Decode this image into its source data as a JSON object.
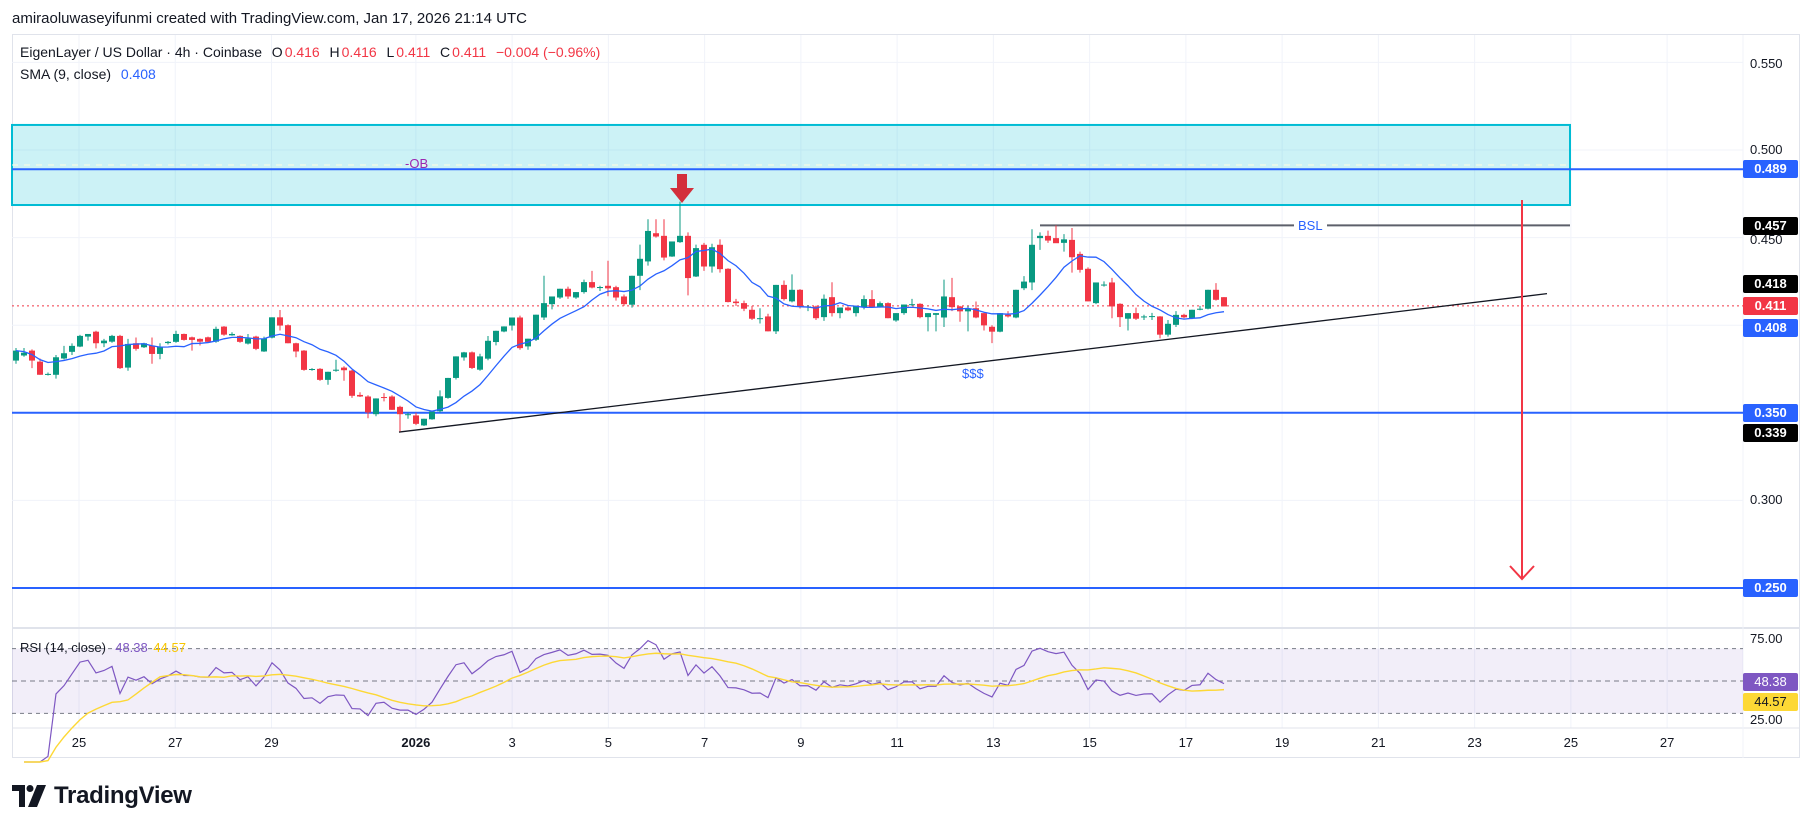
{
  "attribution": "amiraoluwaseyifunmi created with TradingView.com, Jan 17, 2026 21:14 UTC",
  "legend": {
    "symbol": "EigenLayer / US Dollar · 4h · Coinbase",
    "open_label": "O",
    "open": "0.416",
    "high_label": "H",
    "high": "0.416",
    "low_label": "L",
    "low": "0.411",
    "close_label": "C",
    "close": "0.411",
    "change": "−0.004 (−0.96%)",
    "sma_label": "SMA (9, close)",
    "sma_value": "0.408"
  },
  "rsi_legend": {
    "label": "RSI (14, close)",
    "rsi_value": "48.38",
    "ma_value": "44.57"
  },
  "price_axis": {
    "ticks": [
      "0.550",
      "0.500",
      "0.450",
      "0.300"
    ],
    "tags": [
      {
        "value": "0.489",
        "color": "#2962ff"
      },
      {
        "value": "0.457",
        "color": "#000000"
      },
      {
        "value": "0.418",
        "color": "#000000"
      },
      {
        "value": "0.411",
        "color": "#f23645"
      },
      {
        "value": "0.408",
        "color": "#2962ff"
      },
      {
        "value": "0.350",
        "color": "#2962ff"
      },
      {
        "value": "0.339",
        "color": "#000000"
      },
      {
        "value": "0.250",
        "color": "#2962ff"
      }
    ]
  },
  "rsi_axis": {
    "ticks": [
      "75.00",
      "25.00"
    ],
    "tags": [
      {
        "value": "48.38",
        "color": "#7e57c2"
      },
      {
        "value": "44.57",
        "color": "#fdd835"
      }
    ]
  },
  "annotations": {
    "ob_label": "-OB",
    "bsl_label": "BSL",
    "liquidity_label": "$$$"
  },
  "branding": {
    "logo_text": "TradingView"
  },
  "colors": {
    "up": "#089981",
    "down": "#f23645",
    "sma": "#2962ff",
    "rsi": "#7e57c2",
    "rsi_ma": "#fdd835",
    "zone": "#00bcd4",
    "level": "#2962ff",
    "arrow": "#f23645"
  },
  "chart_data": {
    "type": "candlestick",
    "interval": "4h",
    "x_ticks": [
      {
        "label": "25",
        "day": 0
      },
      {
        "label": "27",
        "day": 2
      },
      {
        "label": "29",
        "day": 4
      },
      {
        "label": "2026",
        "day": 7,
        "bold": true
      },
      {
        "label": "3",
        "day": 9
      },
      {
        "label": "5",
        "day": 11
      },
      {
        "label": "7",
        "day": 13
      },
      {
        "label": "9",
        "day": 15
      },
      {
        "label": "11",
        "day": 17
      },
      {
        "label": "13",
        "day": 19
      },
      {
        "label": "15",
        "day": 21
      },
      {
        "label": "17",
        "day": 23
      },
      {
        "label": "19",
        "day": 25
      },
      {
        "label": "21",
        "day": 27
      },
      {
        "label": "23",
        "day": 29
      },
      {
        "label": "25",
        "day": 31
      },
      {
        "label": "27",
        "day": 33
      }
    ],
    "ylim": [
      0.22,
      0.57
    ],
    "ohlc": [
      [
        0.3798,
        0.387,
        0.378,
        0.3855
      ],
      [
        0.3827,
        0.387,
        0.382,
        0.3843
      ],
      [
        0.3855,
        0.3862,
        0.3755,
        0.3798
      ],
      [
        0.3792,
        0.381,
        0.3717,
        0.3717
      ],
      [
        0.372,
        0.373,
        0.3713,
        0.3722
      ],
      [
        0.3717,
        0.383,
        0.3695,
        0.3817
      ],
      [
        0.381,
        0.3882,
        0.3805,
        0.384
      ],
      [
        0.3848,
        0.3896,
        0.383,
        0.3882
      ],
      [
        0.3878,
        0.3945,
        0.3875,
        0.3939
      ],
      [
        0.3935,
        0.395,
        0.3912,
        0.395
      ],
      [
        0.3963,
        0.3968,
        0.3868,
        0.3897
      ],
      [
        0.3897,
        0.3922,
        0.3875,
        0.3912
      ],
      [
        0.3906,
        0.3945,
        0.39,
        0.3939
      ],
      [
        0.3939,
        0.3945,
        0.375,
        0.3755
      ],
      [
        0.3758,
        0.3922,
        0.374,
        0.3893
      ],
      [
        0.3897,
        0.393,
        0.3855,
        0.3865
      ],
      [
        0.3874,
        0.39,
        0.387,
        0.3897
      ],
      [
        0.3884,
        0.393,
        0.378,
        0.3836
      ],
      [
        0.3836,
        0.3897,
        0.3806,
        0.3878
      ],
      [
        0.3898,
        0.391,
        0.389,
        0.3905
      ],
      [
        0.3905,
        0.3968,
        0.39,
        0.395
      ],
      [
        0.395,
        0.3952,
        0.3912,
        0.3916
      ],
      [
        0.3931,
        0.3935,
        0.3855,
        0.3916
      ],
      [
        0.3922,
        0.3925,
        0.3884,
        0.3906
      ],
      [
        0.3931,
        0.3935,
        0.39,
        0.3905
      ],
      [
        0.3906,
        0.3992,
        0.39,
        0.3979
      ],
      [
        0.3992,
        0.3995,
        0.394,
        0.3946
      ],
      [
        0.3942,
        0.396,
        0.394,
        0.395
      ],
      [
        0.3939,
        0.3942,
        0.39,
        0.3905
      ],
      [
        0.3895,
        0.395,
        0.389,
        0.3924
      ],
      [
        0.3935,
        0.394,
        0.3858,
        0.3865
      ],
      [
        0.385,
        0.3935,
        0.3848,
        0.3924
      ],
      [
        0.3929,
        0.4045,
        0.3925,
        0.4045
      ],
      [
        0.4045,
        0.4087,
        0.397,
        0.3998
      ],
      [
        0.4,
        0.4005,
        0.3897,
        0.3897
      ],
      [
        0.3897,
        0.39,
        0.3817,
        0.385
      ],
      [
        0.3855,
        0.3858,
        0.374,
        0.3745
      ],
      [
        0.3745,
        0.3755,
        0.374,
        0.375
      ],
      [
        0.3751,
        0.3755,
        0.3682,
        0.3688
      ],
      [
        0.3688,
        0.3734,
        0.366,
        0.3734
      ],
      [
        0.374,
        0.3803,
        0.3734,
        0.3746
      ],
      [
        0.3758,
        0.3766,
        0.3683,
        0.3743
      ],
      [
        0.3741,
        0.3745,
        0.3585,
        0.3597
      ],
      [
        0.3602,
        0.3617,
        0.359,
        0.3593
      ],
      [
        0.3593,
        0.36,
        0.3469,
        0.3502
      ],
      [
        0.3492,
        0.3582,
        0.348,
        0.3582
      ],
      [
        0.359,
        0.3612,
        0.3565,
        0.3589
      ],
      [
        0.3593,
        0.36,
        0.3517,
        0.3517
      ],
      [
        0.3534,
        0.354,
        0.3394,
        0.3492
      ],
      [
        0.3488,
        0.35,
        0.3466,
        0.3492
      ],
      [
        0.3485,
        0.35,
        0.343,
        0.3437
      ],
      [
        0.3428,
        0.3466,
        0.3425,
        0.3466
      ],
      [
        0.3463,
        0.351,
        0.346,
        0.3507
      ],
      [
        0.3509,
        0.3628,
        0.35,
        0.3594
      ],
      [
        0.3585,
        0.3699,
        0.358,
        0.3699
      ],
      [
        0.3699,
        0.3822,
        0.369,
        0.3822
      ],
      [
        0.3816,
        0.3848,
        0.3798,
        0.3845
      ],
      [
        0.3845,
        0.385,
        0.375,
        0.3756
      ],
      [
        0.3746,
        0.3837,
        0.374,
        0.3822
      ],
      [
        0.3809,
        0.3938,
        0.38,
        0.3911
      ],
      [
        0.3904,
        0.3968,
        0.3885,
        0.3968
      ],
      [
        0.3964,
        0.3993,
        0.396,
        0.3993
      ],
      [
        0.3998,
        0.4044,
        0.397,
        0.4044
      ],
      [
        0.4044,
        0.4055,
        0.386,
        0.3869
      ],
      [
        0.3879,
        0.3923,
        0.386,
        0.3923
      ],
      [
        0.3917,
        0.406,
        0.391,
        0.406
      ],
      [
        0.4044,
        0.4282,
        0.403,
        0.4126
      ],
      [
        0.412,
        0.4164,
        0.409,
        0.4164
      ],
      [
        0.4158,
        0.4208,
        0.415,
        0.4208
      ],
      [
        0.4208,
        0.422,
        0.415,
        0.4164
      ],
      [
        0.4158,
        0.4189,
        0.415,
        0.4189
      ],
      [
        0.4189,
        0.426,
        0.418,
        0.4246
      ],
      [
        0.4246,
        0.431,
        0.421,
        0.4215
      ],
      [
        0.4212,
        0.4225,
        0.4195,
        0.4218
      ],
      [
        0.4225,
        0.4368,
        0.4165,
        0.421
      ],
      [
        0.4217,
        0.4225,
        0.414,
        0.4158
      ],
      [
        0.4164,
        0.4175,
        0.411,
        0.412
      ],
      [
        0.4117,
        0.4282,
        0.41,
        0.4282
      ],
      [
        0.4282,
        0.446,
        0.42,
        0.4379
      ],
      [
        0.4364,
        0.4605,
        0.434,
        0.4538
      ],
      [
        0.4525,
        0.4605,
        0.45,
        0.4506
      ],
      [
        0.451,
        0.4605,
        0.437,
        0.4386
      ],
      [
        0.4392,
        0.4478,
        0.439,
        0.4478
      ],
      [
        0.4474,
        0.4705,
        0.447,
        0.451
      ],
      [
        0.451,
        0.453,
        0.417,
        0.4269
      ],
      [
        0.4278,
        0.446,
        0.4275,
        0.444
      ],
      [
        0.4459,
        0.447,
        0.431,
        0.4335
      ],
      [
        0.4335,
        0.4465,
        0.43,
        0.4445
      ],
      [
        0.4459,
        0.449,
        0.43,
        0.432
      ],
      [
        0.4322,
        0.4325,
        0.413,
        0.4132
      ],
      [
        0.4135,
        0.415,
        0.411,
        0.4126
      ],
      [
        0.4126,
        0.414,
        0.408,
        0.4094
      ],
      [
        0.4088,
        0.411,
        0.403,
        0.4037
      ],
      [
        0.404,
        0.4097,
        0.401,
        0.404
      ],
      [
        0.405,
        0.4065,
        0.3965,
        0.3965
      ],
      [
        0.3965,
        0.423,
        0.395,
        0.423
      ],
      [
        0.423,
        0.4255,
        0.414,
        0.4149
      ],
      [
        0.4136,
        0.429,
        0.413,
        0.4202
      ],
      [
        0.4202,
        0.4206,
        0.4095,
        0.4107
      ],
      [
        0.4107,
        0.4115,
        0.408,
        0.4107
      ],
      [
        0.4107,
        0.4112,
        0.403,
        0.404
      ],
      [
        0.4046,
        0.4175,
        0.4025,
        0.4151
      ],
      [
        0.416,
        0.4245,
        0.405,
        0.4069
      ],
      [
        0.4069,
        0.4101,
        0.404,
        0.4101
      ],
      [
        0.4101,
        0.4105,
        0.408,
        0.4085
      ],
      [
        0.4069,
        0.4111,
        0.405,
        0.4111
      ],
      [
        0.4103,
        0.417,
        0.409,
        0.4149
      ],
      [
        0.4149,
        0.42,
        0.41,
        0.4103
      ],
      [
        0.4103,
        0.4135,
        0.41,
        0.4126
      ],
      [
        0.4126,
        0.413,
        0.404,
        0.404
      ],
      [
        0.4027,
        0.4069,
        0.402,
        0.4069
      ],
      [
        0.4069,
        0.4118,
        0.406,
        0.4118
      ],
      [
        0.4118,
        0.415,
        0.411,
        0.412
      ],
      [
        0.4122,
        0.4125,
        0.404,
        0.4046
      ],
      [
        0.4046,
        0.4069,
        0.3965,
        0.4069
      ],
      [
        0.4059,
        0.4069,
        0.3965,
        0.4069
      ],
      [
        0.4044,
        0.426,
        0.399,
        0.4164
      ],
      [
        0.416,
        0.427,
        0.408,
        0.4103
      ],
      [
        0.4107,
        0.411,
        0.402,
        0.4079
      ],
      [
        0.4079,
        0.411,
        0.3965,
        0.4094
      ],
      [
        0.4097,
        0.4135,
        0.404,
        0.4044
      ],
      [
        0.4069,
        0.407,
        0.397,
        0.3999
      ],
      [
        0.3991,
        0.4,
        0.3898,
        0.3963
      ],
      [
        0.3963,
        0.4069,
        0.396,
        0.4069
      ],
      [
        0.406,
        0.408,
        0.4044,
        0.405
      ],
      [
        0.4044,
        0.4202,
        0.404,
        0.4202
      ],
      [
        0.4211,
        0.428,
        0.42,
        0.4249
      ],
      [
        0.4244,
        0.4548,
        0.42,
        0.4459
      ],
      [
        0.4497,
        0.453,
        0.443,
        0.451
      ],
      [
        0.451,
        0.454,
        0.447,
        0.4483
      ],
      [
        0.4497,
        0.457,
        0.447,
        0.4468
      ],
      [
        0.447,
        0.452,
        0.442,
        0.449
      ],
      [
        0.4487,
        0.4555,
        0.43,
        0.4388
      ],
      [
        0.4407,
        0.442,
        0.43,
        0.4316
      ],
      [
        0.4322,
        0.433,
        0.4136,
        0.4136
      ],
      [
        0.4126,
        0.4244,
        0.412,
        0.4244
      ],
      [
        0.423,
        0.425,
        0.422,
        0.4232
      ],
      [
        0.4244,
        0.427,
        0.404,
        0.4107
      ],
      [
        0.4122,
        0.4125,
        0.399,
        0.4046
      ],
      [
        0.4037,
        0.4069,
        0.397,
        0.4069
      ],
      [
        0.4069,
        0.41,
        0.403,
        0.4037
      ],
      [
        0.4045,
        0.406,
        0.403,
        0.405
      ],
      [
        0.405,
        0.407,
        0.403,
        0.4052
      ],
      [
        0.405,
        0.4052,
        0.3925,
        0.3946
      ],
      [
        0.3946,
        0.403,
        0.3935,
        0.4008
      ],
      [
        0.4002,
        0.408,
        0.399,
        0.4059
      ],
      [
        0.4059,
        0.4065,
        0.404,
        0.4045
      ],
      [
        0.404,
        0.4088,
        0.4035,
        0.4088
      ],
      [
        0.409,
        0.411,
        0.4085,
        0.4094
      ],
      [
        0.4094,
        0.4202,
        0.409,
        0.4202
      ],
      [
        0.4202,
        0.424,
        0.414,
        0.4145
      ],
      [
        0.416,
        0.416,
        0.4107,
        0.4107
      ]
    ],
    "indicators": {
      "sma_period": 9,
      "rsi_period": 14,
      "rsi_ma_period": 14,
      "rsi_bands": [
        70,
        50,
        30
      ],
      "rsi_ylim": [
        25,
        75
      ]
    },
    "levels": [
      0.489,
      0.35,
      0.25
    ],
    "order_block": [
      0.4686,
      0.5143
    ],
    "bsl_level": 0.457,
    "trendline": [
      0.339,
      0.418
    ],
    "last_price": 0.411,
    "projection_target": 0.25
  }
}
